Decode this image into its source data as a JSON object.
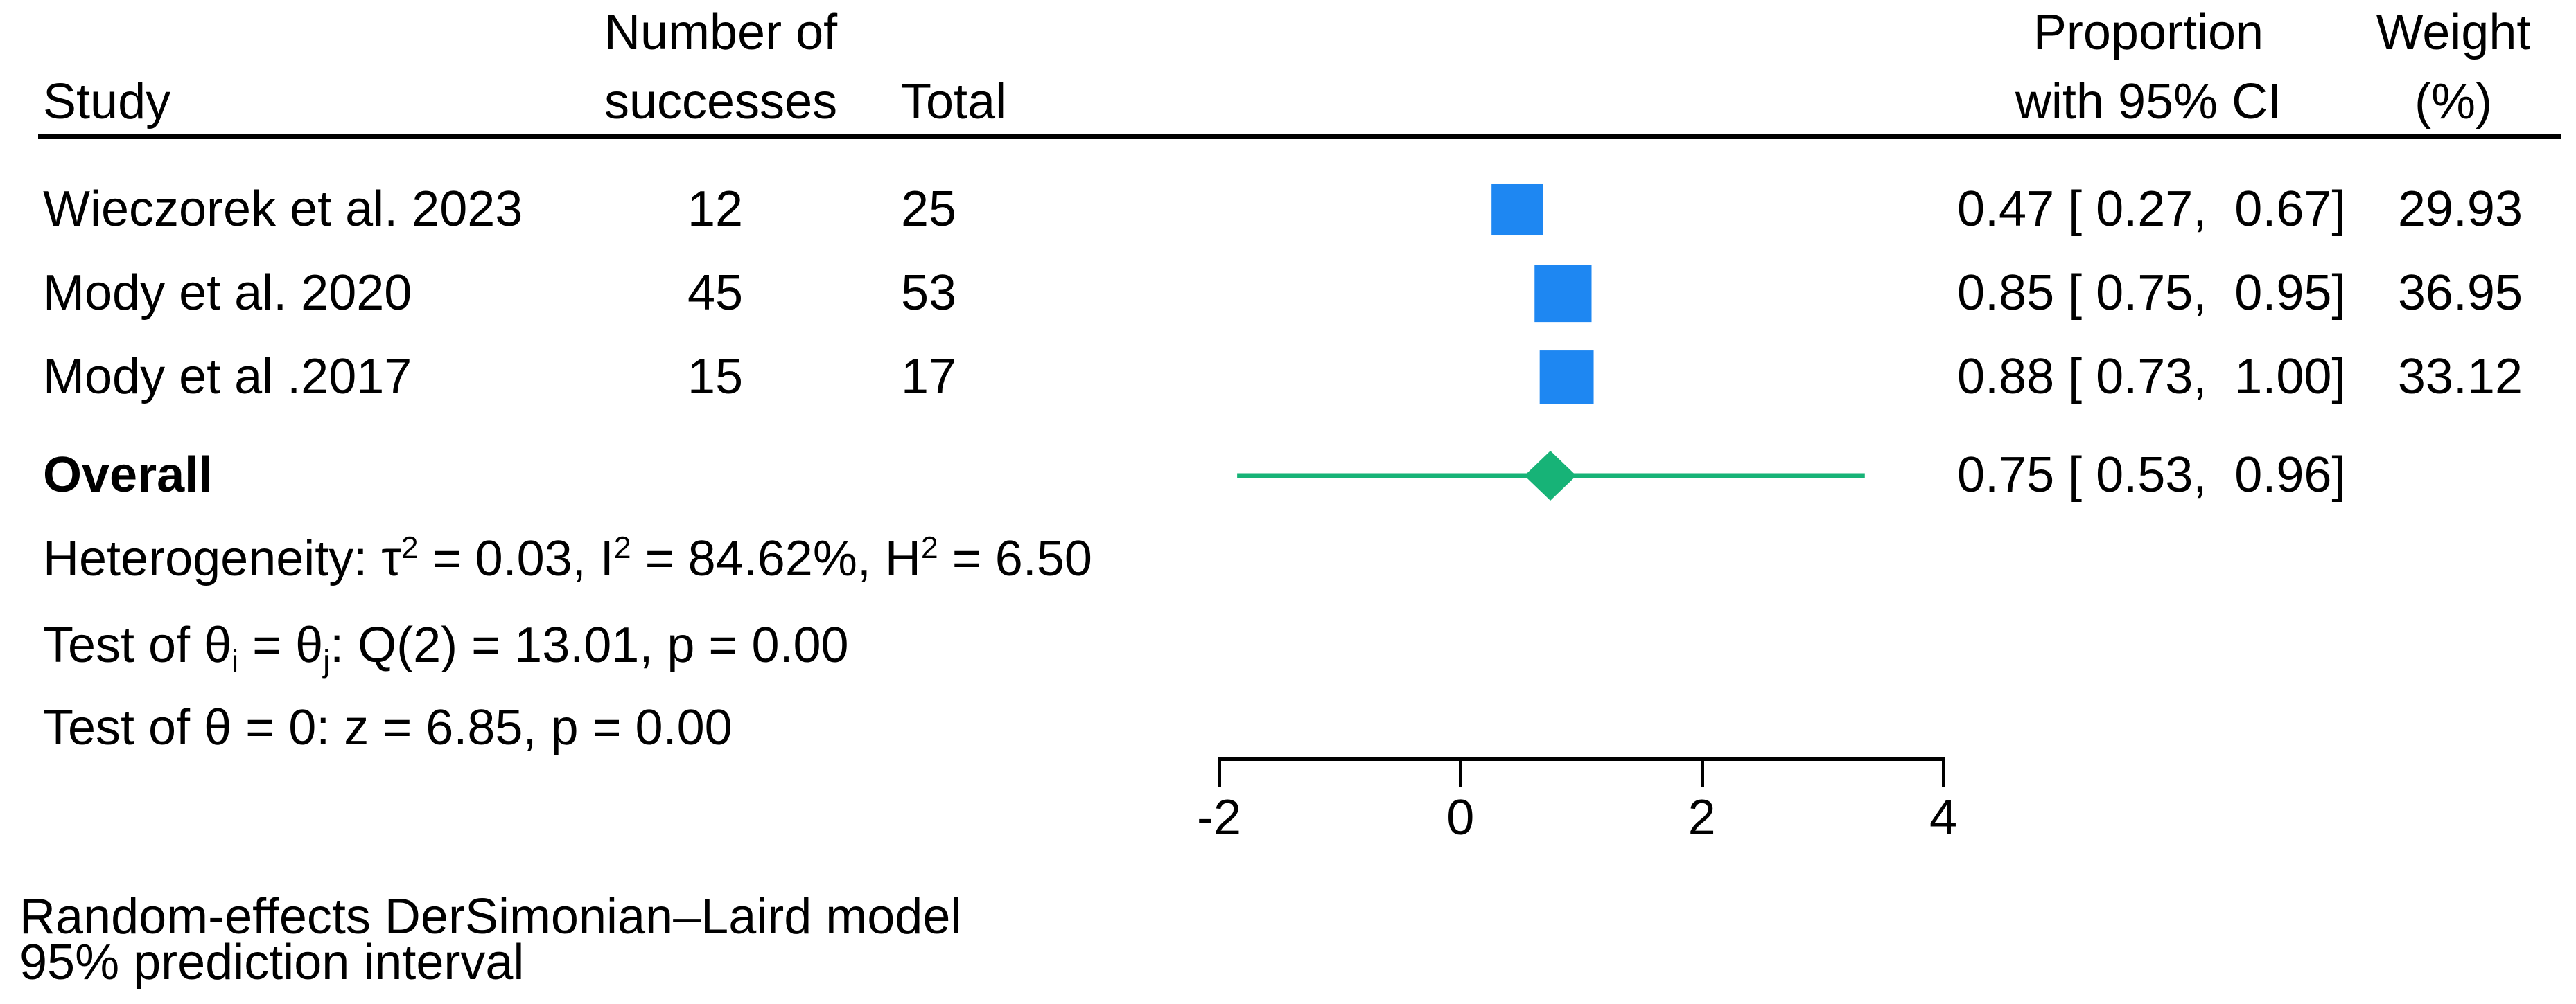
{
  "table": {
    "headers": {
      "study": "Study",
      "successes_line1": "Number of",
      "successes_line2": "successes",
      "total": "Total",
      "ci_line1": "Proportion",
      "ci_line2": "with 95% CI",
      "weight_line1": "Weight",
      "weight_line2": "(%)"
    },
    "rows": [
      {
        "study": "Wieczorek et al. 2023",
        "successes_text": "12",
        "total_text": "25",
        "ci_text": "0.47 [ 0.27,  0.67]",
        "weight_text": "29.93"
      },
      {
        "study": "Mody et al. 2020",
        "successes_text": "45",
        "total_text": "53",
        "ci_text": "0.85 [ 0.75,  0.95]",
        "weight_text": "36.95"
      },
      {
        "study": "Mody et al .2017",
        "successes_text": "15",
        "total_text": "17",
        "ci_text": "0.88 [ 0.73,  1.00]",
        "weight_text": "33.12"
      }
    ],
    "overall": {
      "label": "Overall",
      "ci_text": "0.75 [ 0.53,  0.96]"
    }
  },
  "stats": {
    "lines": [
      {
        "segments": [
          {
            "t": "Heterogeneity: τ"
          },
          {
            "t": "2",
            "s": "sup"
          },
          {
            "t": " = 0.03, I"
          },
          {
            "t": "2",
            "s": "sup"
          },
          {
            "t": " = 84.62%, H"
          },
          {
            "t": "2",
            "s": "sup"
          },
          {
            "t": " = 6.50"
          }
        ]
      },
      {
        "segments": [
          {
            "t": "Test of θ"
          },
          {
            "t": "i",
            "s": "sub"
          },
          {
            "t": " = θ"
          },
          {
            "t": "j",
            "s": "sub"
          },
          {
            "t": ": Q(2) = 13.01, p = 0.00"
          }
        ]
      },
      {
        "segments": [
          {
            "t": "Test of θ = 0: z = 6.85, p = 0.00"
          }
        ]
      }
    ]
  },
  "footer": {
    "line1": "Random-effects DerSimonian–Laird model",
    "line2": "95% prediction interval"
  },
  "chart_data": {
    "type": "forest",
    "x_axis": {
      "range": [
        -2,
        4
      ],
      "ticks": [
        -2,
        0,
        2,
        4
      ],
      "tick_labels": [
        "-2",
        "0",
        "2",
        "4"
      ]
    },
    "studies": [
      {
        "name": "Wieczorek et al. 2023",
        "successes": 12,
        "total": 25,
        "estimate": 0.47,
        "ci": [
          0.27,
          0.67
        ],
        "weight_pct": 29.93
      },
      {
        "name": "Mody et al. 2020",
        "successes": 45,
        "total": 53,
        "estimate": 0.85,
        "ci": [
          0.75,
          0.95
        ],
        "weight_pct": 36.95
      },
      {
        "name": "Mody et al .2017",
        "successes": 15,
        "total": 17,
        "estimate": 0.88,
        "ci": [
          0.73,
          1.0
        ],
        "weight_pct": 33.12
      }
    ],
    "overall": {
      "estimate": 0.75,
      "ci": [
        0.53,
        0.96
      ],
      "prediction_interval_est": [
        -1.85,
        3.35
      ]
    },
    "heterogeneity": {
      "tau2": 0.03,
      "i2_pct": 84.62,
      "h2": 6.5
    },
    "tests": {
      "homogeneity": {
        "Q": 13.01,
        "df": 2,
        "p": 0.0
      },
      "overall_effect": {
        "z": 6.85,
        "p": 0.0
      }
    },
    "colors": {
      "study_marker": "#1e87f2",
      "overall_marker": "#17b377",
      "text": "#000000"
    }
  }
}
